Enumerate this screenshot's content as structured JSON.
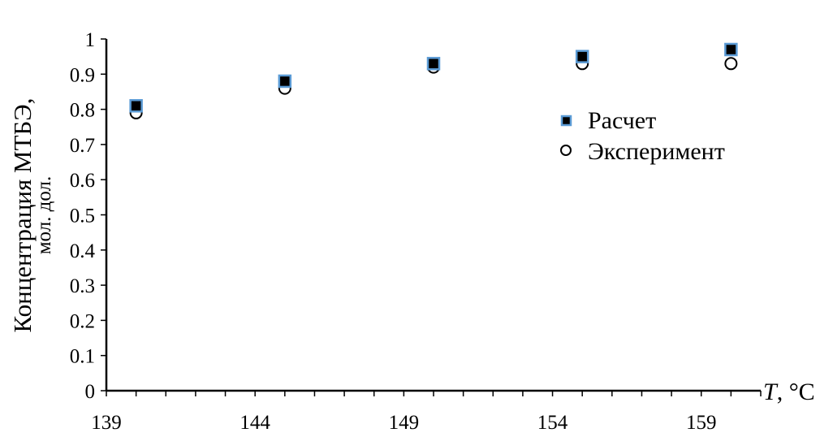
{
  "chart_data": {
    "type": "scatter",
    "title": "",
    "xlabel_italic": "T",
    "xlabel_unit": ", °C",
    "ylabel_line1": "Концентрация МТБЭ,",
    "ylabel_line2": "мол. дол.",
    "xlim": [
      139,
      161
    ],
    "ylim": [
      0,
      1
    ],
    "x_ticks": [
      139,
      144,
      149,
      154,
      159
    ],
    "x_minor_step": 1,
    "y_ticks": [
      "0",
      "0.1",
      "0.2",
      "0.3",
      "0.4",
      "0.5",
      "0.6",
      "0.7",
      "0.8",
      "0.9",
      "1"
    ],
    "grid": false,
    "legend_position": "right",
    "series": [
      {
        "name": "Расчет",
        "marker": "square",
        "fill": "#000000",
        "edge": "#5b9bd5",
        "x": [
          140,
          145,
          150,
          155,
          160
        ],
        "y": [
          0.81,
          0.88,
          0.93,
          0.95,
          0.97
        ]
      },
      {
        "name": "Эксперимент",
        "marker": "circle",
        "fill": "#ffffff",
        "edge": "#000000",
        "x": [
          140,
          145,
          150,
          155,
          160
        ],
        "y": [
          0.79,
          0.86,
          0.92,
          0.93,
          0.93
        ]
      }
    ]
  }
}
